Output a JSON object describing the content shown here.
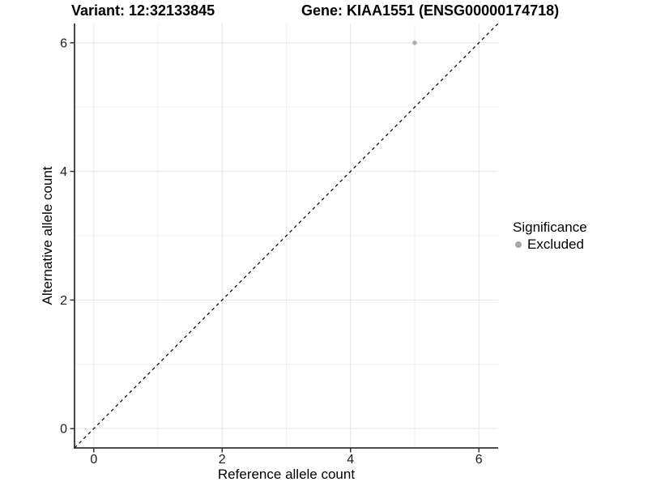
{
  "chart_data": {
    "type": "scatter",
    "title_left": "Variant: 12:32133845",
    "title_right": "Gene: KIAA1551 (ENSG00000174718)",
    "xlabel": "Reference allele count",
    "ylabel": "Alternative allele count",
    "xlim": [
      -0.3,
      6.3
    ],
    "ylim": [
      -0.3,
      6.3
    ],
    "x_major_ticks": [
      0,
      2,
      4,
      6
    ],
    "y_major_ticks": [
      0,
      2,
      4,
      6
    ],
    "x_minor_ticks": [
      1,
      3,
      5
    ],
    "y_minor_ticks": [
      1,
      3,
      5
    ],
    "grid": true,
    "reference_line": {
      "kind": "identity",
      "style": "dashed",
      "x1": -0.3,
      "y1": -0.3,
      "x2": 6.3,
      "y2": 6.3
    },
    "series": [
      {
        "name": "Excluded",
        "color": "#aeaeae",
        "points": [
          {
            "x": 5,
            "y": 6
          }
        ]
      }
    ],
    "legend": {
      "title": "Significance",
      "position": "right",
      "items": [
        {
          "label": "Excluded",
          "color": "#a8a8a8"
        }
      ]
    },
    "style": {
      "background": "#ffffff",
      "axis_color": "#333333",
      "tick_label_color": "#1a1a1a",
      "grid_major_color": "#e4e4e4",
      "grid_minor_color": "#f0f0f0",
      "ref_line_color": "#000000",
      "title_color": "#000000"
    }
  }
}
